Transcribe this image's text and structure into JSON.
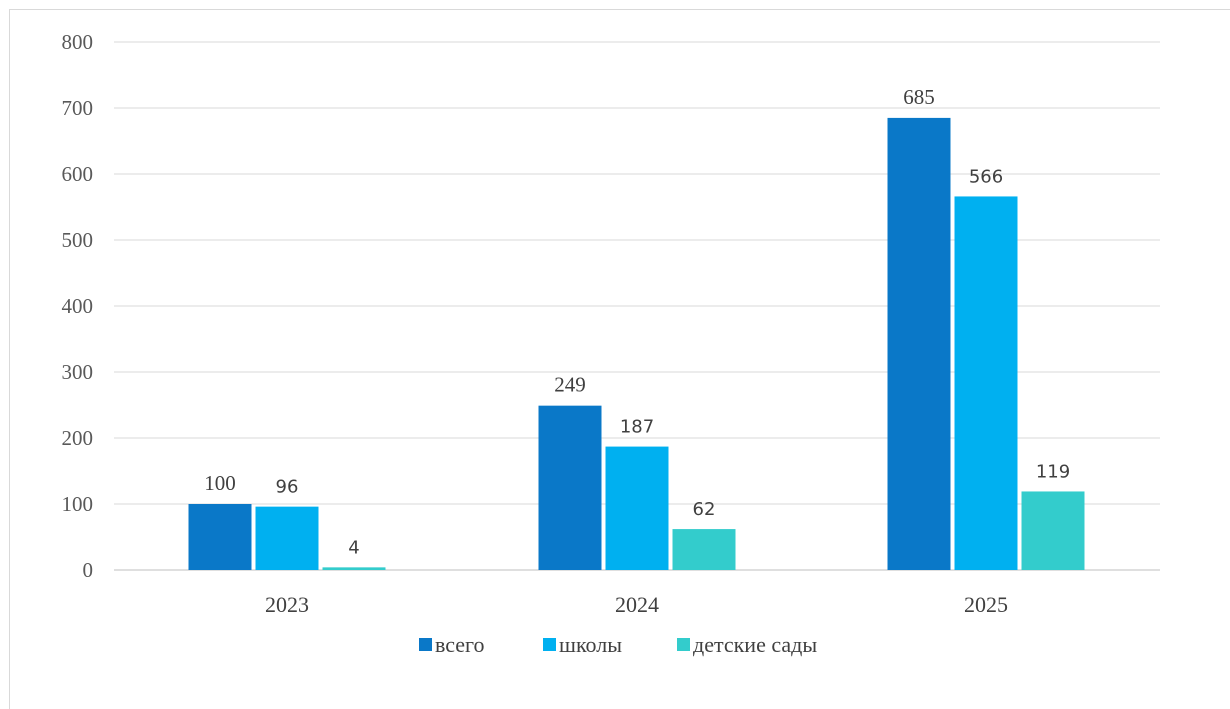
{
  "chart_data": {
    "type": "bar",
    "categories": [
      "2023",
      "2024",
      "2025"
    ],
    "series": [
      {
        "name": "всего",
        "values": [
          100,
          249,
          685
        ],
        "color": "#0a78c8"
      },
      {
        "name": "школы",
        "values": [
          96,
          187,
          566
        ],
        "color": "#00b0f0"
      },
      {
        "name": "детские сады",
        "values": [
          4,
          62,
          119
        ],
        "color": "#33cccc"
      }
    ],
    "ylim": [
      0,
      800
    ],
    "yticks": [
      0,
      100,
      200,
      300,
      400,
      500,
      600,
      700,
      800
    ],
    "grid": true,
    "legend_position": "bottom",
    "title": "",
    "xlabel": "",
    "ylabel": ""
  }
}
